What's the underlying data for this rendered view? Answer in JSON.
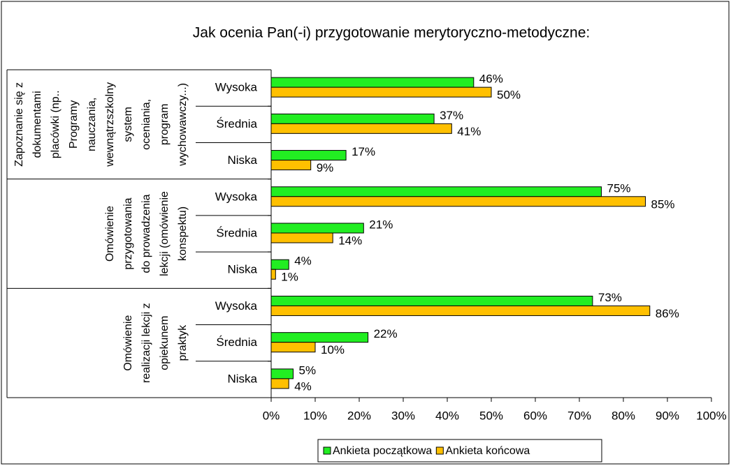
{
  "chart_data": {
    "type": "bar",
    "title": "Jak ocenia Pan(-i) przygotowanie merytoryczno-metodyczne:",
    "groups": [
      {
        "label": [
          "Zapoznanie się z",
          "dokumentami",
          "placówki (np..",
          "Programy",
          "nauczania,",
          "wewnątrzszkolny",
          "system",
          "oceniania,",
          "program",
          "wychowawczy...)"
        ],
        "categories": [
          "Wysoka",
          "Średnia",
          "Niska"
        ]
      },
      {
        "label": [
          "Omówienie",
          "przygotowania",
          "do prowadzenia",
          "lekcji (omówienie",
          "konspektu)"
        ],
        "categories": [
          "Wysoka",
          "Średnia",
          "Niska"
        ]
      },
      {
        "label": [
          "Omówienie",
          "realizacji lekcji z",
          "opiekunem",
          "praktyk"
        ],
        "categories": [
          "Wysoka",
          "Średnia",
          "Niska"
        ]
      }
    ],
    "series": [
      {
        "name": "Ankieta początkowa",
        "color": "#22ee22",
        "values": [
          46,
          37,
          17,
          75,
          21,
          4,
          73,
          22,
          5
        ],
        "value_labels": [
          "46%",
          "37%",
          "17%",
          "75%",
          "21%",
          "4%",
          "73%",
          "22%",
          "5%"
        ]
      },
      {
        "name": "Ankieta końcowa",
        "color": "#ffc000",
        "values": [
          50,
          41,
          9,
          85,
          14,
          1,
          86,
          10,
          4
        ],
        "value_labels": [
          "50%",
          "41%",
          "9%",
          "85%",
          "14%",
          "1%",
          "86%",
          "10%",
          "4%"
        ]
      }
    ],
    "xlim": [
      0,
      100
    ],
    "xticks": [
      {
        "value": 0,
        "label": "0%"
      },
      {
        "value": 10,
        "label": "10%"
      },
      {
        "value": 20,
        "label": "20%"
      },
      {
        "value": 30,
        "label": "30%"
      },
      {
        "value": 40,
        "label": "40%"
      },
      {
        "value": 50,
        "label": "50%"
      },
      {
        "value": 60,
        "label": "60%"
      },
      {
        "value": 70,
        "label": "70%"
      },
      {
        "value": 80,
        "label": "80%"
      },
      {
        "value": 90,
        "label": "90%"
      },
      {
        "value": 100,
        "label": "100%"
      }
    ],
    "legend": "bottom"
  }
}
